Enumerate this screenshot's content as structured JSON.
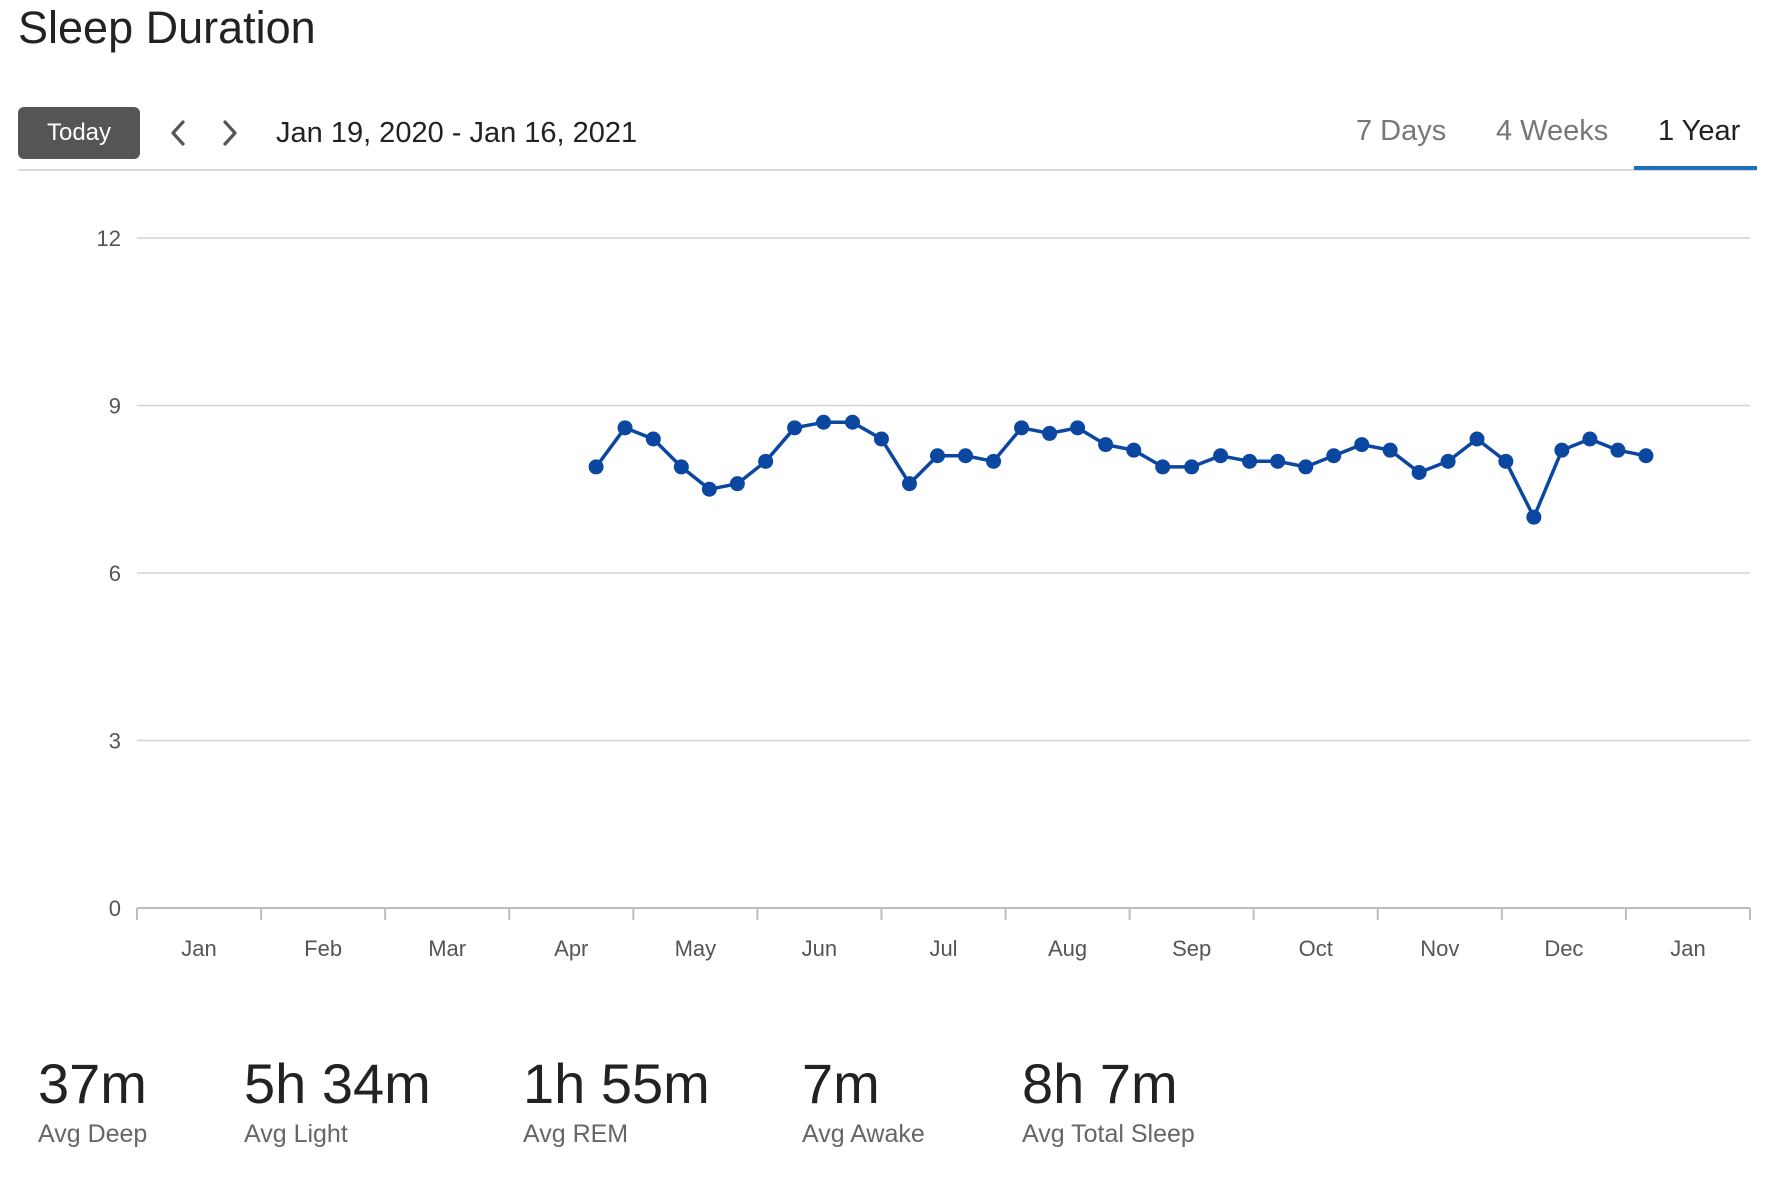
{
  "header": {
    "title": "Sleep Duration",
    "today_label": "Today",
    "date_range": "Jan 19, 2020 - Jan 16, 2021",
    "tabs": [
      {
        "label": "7 Days",
        "active": false
      },
      {
        "label": "4 Weeks",
        "active": false
      },
      {
        "label": "1 Year",
        "active": true
      }
    ]
  },
  "colors": {
    "series": "#0b47a1",
    "accent": "#1f6fc0",
    "button": "#555555"
  },
  "icons": {
    "prev": "chevron-left-icon",
    "next": "chevron-right-icon"
  },
  "chart_data": {
    "type": "line",
    "title": "",
    "xlabel": "",
    "ylabel": "",
    "ylim": [
      0,
      12
    ],
    "yticks": [
      "0",
      "3",
      "6",
      "9",
      "12"
    ],
    "month_labels": [
      "Jan",
      "Feb",
      "Mar",
      "Apr",
      "May",
      "Jun",
      "Jul",
      "Aug",
      "Sep",
      "Oct",
      "Nov",
      "Dec",
      "Jan"
    ],
    "grid": true,
    "series": [
      {
        "name": "",
        "x": [
          "2020-04-22",
          "2020-04-29",
          "2020-05-06",
          "2020-05-13",
          "2020-05-20",
          "2020-05-27",
          "2020-06-03",
          "2020-06-10",
          "2020-06-17",
          "2020-06-24",
          "2020-07-01",
          "2020-07-08",
          "2020-07-15",
          "2020-07-22",
          "2020-07-29",
          "2020-08-05",
          "2020-08-12",
          "2020-08-19",
          "2020-08-26",
          "2020-09-02",
          "2020-09-09",
          "2020-09-16",
          "2020-09-23",
          "2020-09-30",
          "2020-10-07",
          "2020-10-14",
          "2020-10-21",
          "2020-10-28",
          "2020-11-04",
          "2020-11-11",
          "2020-11-18",
          "2020-11-25",
          "2020-12-02",
          "2020-12-09",
          "2020-12-16",
          "2020-12-23",
          "2020-12-30",
          "2021-01-06"
        ],
        "values": [
          7.9,
          8.6,
          8.4,
          7.9,
          7.5,
          7.6,
          8.0,
          8.6,
          8.7,
          8.7,
          8.4,
          7.6,
          8.1,
          8.1,
          8.0,
          8.6,
          8.5,
          8.6,
          8.3,
          8.2,
          7.9,
          7.9,
          8.1,
          8.0,
          8.0,
          7.9,
          8.1,
          8.3,
          8.2,
          7.8,
          8.0,
          8.4,
          8.0,
          7.0,
          8.2,
          8.4,
          8.2,
          8.1
        ]
      }
    ]
  },
  "stats": [
    {
      "value": "37m",
      "label": "Avg Deep"
    },
    {
      "value": "5h 34m",
      "label": "Avg Light"
    },
    {
      "value": "1h 55m",
      "label": "Avg REM"
    },
    {
      "value": "7m",
      "label": "Avg Awake"
    },
    {
      "value": "8h 7m",
      "label": "Avg Total Sleep"
    }
  ]
}
